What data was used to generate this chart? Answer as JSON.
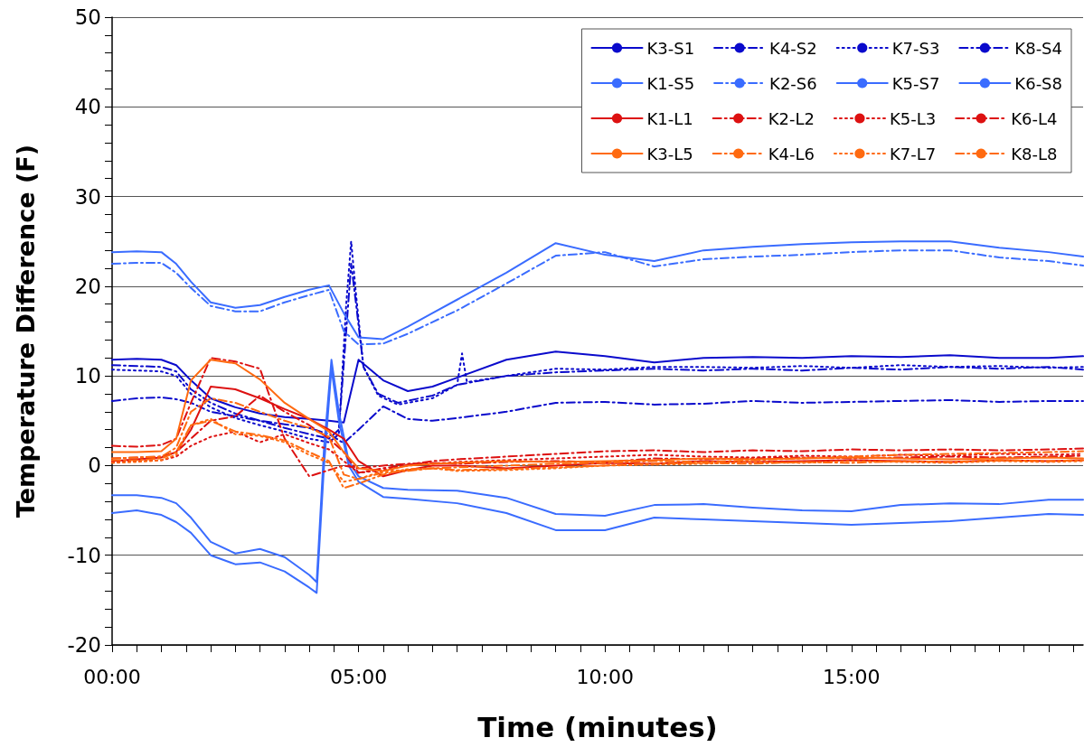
{
  "chart_data": {
    "type": "line",
    "xlabel": "Time (minutes)",
    "ylabel": "Temperature Difference (F)",
    "xlim": [
      0,
      19.7
    ],
    "ylim": [
      -20,
      50
    ],
    "xticks": [
      {
        "value": 0,
        "label": "00:00"
      },
      {
        "value": 0.5,
        "label": null
      },
      {
        "value": 1,
        "label": null
      },
      {
        "value": 1.5,
        "label": null
      },
      {
        "value": 2,
        "label": null
      },
      {
        "value": 2.5,
        "label": null
      },
      {
        "value": 3,
        "label": null
      },
      {
        "value": 3.5,
        "label": null
      },
      {
        "value": 4,
        "label": null
      },
      {
        "value": 4.5,
        "label": null
      },
      {
        "value": 5,
        "label": "05:00"
      },
      {
        "value": 5.5,
        "label": null
      },
      {
        "value": 6,
        "label": null
      },
      {
        "value": 6.5,
        "label": null
      },
      {
        "value": 7,
        "label": null
      },
      {
        "value": 7.5,
        "label": null
      },
      {
        "value": 8,
        "label": null
      },
      {
        "value": 8.5,
        "label": null
      },
      {
        "value": 9,
        "label": null
      },
      {
        "value": 9.5,
        "label": null
      },
      {
        "value": 10,
        "label": "10:00"
      },
      {
        "value": 10.5,
        "label": null
      },
      {
        "value": 11,
        "label": null
      },
      {
        "value": 11.5,
        "label": null
      },
      {
        "value": 12,
        "label": null
      },
      {
        "value": 12.5,
        "label": null
      },
      {
        "value": 13,
        "label": null
      },
      {
        "value": 13.5,
        "label": null
      },
      {
        "value": 14,
        "label": null
      },
      {
        "value": 14.5,
        "label": null
      },
      {
        "value": 15,
        "label": "15:00"
      },
      {
        "value": 15.5,
        "label": null
      },
      {
        "value": 16,
        "label": null
      },
      {
        "value": 16.5,
        "label": null
      },
      {
        "value": 17,
        "label": null
      },
      {
        "value": 17.5,
        "label": null
      },
      {
        "value": 18,
        "label": null
      },
      {
        "value": 18.5,
        "label": null
      },
      {
        "value": 19,
        "label": null
      },
      {
        "value": 19.5,
        "label": null
      }
    ],
    "yticks": [
      -20,
      {
        "value": -18,
        "label": null
      },
      {
        "value": -16,
        "label": null
      },
      {
        "value": -14,
        "label": null
      },
      {
        "value": -12,
        "label": null
      },
      -10,
      {
        "value": -8,
        "label": null
      },
      {
        "value": -6,
        "label": null
      },
      {
        "value": -4,
        "label": null
      },
      {
        "value": -2,
        "label": null
      },
      0,
      {
        "value": 2,
        "label": null
      },
      {
        "value": 4,
        "label": null
      },
      {
        "value": 6,
        "label": null
      },
      {
        "value": 8,
        "label": null
      },
      10,
      {
        "value": 12,
        "label": null
      },
      {
        "value": 14,
        "label": null
      },
      {
        "value": 16,
        "label": null
      },
      {
        "value": 18,
        "label": null
      },
      20,
      {
        "value": 22,
        "label": null
      },
      {
        "value": 24,
        "label": null
      },
      {
        "value": 26,
        "label": null
      },
      {
        "value": 28,
        "label": null
      },
      30,
      {
        "value": 32,
        "label": null
      },
      {
        "value": 34,
        "label": null
      },
      {
        "value": 36,
        "label": null
      },
      {
        "value": 38,
        "label": null
      },
      40,
      {
        "value": 42,
        "label": null
      },
      {
        "value": 44,
        "label": null
      },
      {
        "value": 46,
        "label": null
      },
      {
        "value": 48,
        "label": null
      },
      50
    ],
    "grid": "y",
    "legend": "top right",
    "marker": "none",
    "x": [
      0,
      0.5,
      1,
      1.3,
      1.6,
      2,
      2.5,
      3,
      3.5,
      4,
      4.4,
      4.7,
      5,
      5.5,
      6,
      6.5,
      7,
      8,
      9,
      10,
      11,
      12,
      13,
      14,
      15,
      16,
      17,
      18,
      19,
      19.7
    ],
    "series": [
      {
        "name": "K3-S1",
        "color": "#0a0acc",
        "line_style": "solid",
        "values": [
          11.8,
          11.9,
          11.8,
          11.2,
          9.5,
          7.5,
          6.5,
          5.8,
          5.4,
          5.2,
          5,
          4.8,
          11.8,
          9.5,
          8.3,
          8.8,
          9.8,
          11.8,
          12.7,
          12.2,
          11.5,
          12,
          12.1,
          12,
          12.2,
          12.1,
          12.3,
          12,
          12,
          12.2
        ]
      },
      {
        "name": "K4-S2",
        "color": "#0a0acc",
        "line_style": "dashed",
        "x": [
          0,
          0.5,
          1,
          1.3,
          1.6,
          2,
          2.5,
          3,
          3.5,
          4,
          4.4,
          4.6,
          4.75,
          4.85,
          4.95,
          5.1,
          5.4,
          5.8,
          6.5,
          7,
          8,
          9,
          10,
          11,
          12,
          13,
          14,
          15,
          16,
          17,
          18,
          19,
          19.7
        ],
        "values": [
          11.2,
          11.1,
          11,
          10.5,
          8.5,
          7,
          5.8,
          5,
          4.2,
          3.5,
          3,
          4,
          15,
          22.5,
          18,
          11,
          8,
          7,
          7.8,
          9,
          10,
          10.4,
          10.6,
          10.8,
          10.6,
          10.8,
          10.6,
          10.9,
          10.7,
          11,
          10.8,
          11,
          10.7
        ]
      },
      {
        "name": "K7-S3",
        "color": "#0a0acc",
        "line_style": "dotted",
        "x": [
          0,
          0.5,
          1,
          1.3,
          1.6,
          2,
          2.5,
          3,
          3.5,
          4,
          4.4,
          4.6,
          4.75,
          4.85,
          4.95,
          5.1,
          5.4,
          5.8,
          6.5,
          7,
          7.1,
          7.2,
          8,
          9,
          10,
          11,
          12,
          13,
          14,
          15,
          16,
          17,
          18,
          19,
          19.7
        ],
        "values": [
          10.7,
          10.6,
          10.5,
          10,
          8,
          6.5,
          5.3,
          4.5,
          3.8,
          3,
          2.6,
          3.5,
          18,
          25,
          19,
          11,
          7.8,
          6.8,
          7.5,
          9,
          12.5,
          9.3,
          10,
          10.8,
          10.7,
          11,
          11,
          10.9,
          11.1,
          10.9,
          11.2,
          11,
          11.1,
          10.9,
          11
        ]
      },
      {
        "name": "K8-S4",
        "color": "#0a0acc",
        "line_style": "dashed",
        "values": [
          7.2,
          7.5,
          7.6,
          7.4,
          7,
          6,
          5.5,
          5,
          4.6,
          4.2,
          3.5,
          2.5,
          4,
          6.6,
          5.2,
          5,
          5.3,
          6,
          7,
          7.1,
          6.8,
          6.9,
          7.2,
          7,
          7.1,
          7.2,
          7.3,
          7.1,
          7.2,
          7.2
        ]
      },
      {
        "name": "K1-S5",
        "color": "#3a6cff",
        "line_style": "solid",
        "values": [
          23.8,
          23.9,
          23.8,
          22.5,
          20.5,
          18.2,
          17.6,
          17.9,
          18.8,
          19.6,
          20.1,
          17,
          14.3,
          14.1,
          15.5,
          17,
          18.5,
          21.5,
          24.8,
          23.5,
          22.8,
          24,
          24.4,
          24.7,
          24.9,
          25,
          25,
          24.3,
          23.8,
          23.3
        ]
      },
      {
        "name": "K2-S6",
        "color": "#3a6cff",
        "line_style": "dashed",
        "values": [
          22.5,
          22.6,
          22.6,
          21.5,
          19.8,
          17.8,
          17.2,
          17.2,
          18.2,
          19,
          19.6,
          15,
          13.5,
          13.6,
          14.7,
          16,
          17.3,
          20.3,
          23.4,
          23.8,
          22.2,
          23,
          23.3,
          23.5,
          23.8,
          24,
          24,
          23.2,
          22.8,
          22.3
        ]
      },
      {
        "name": "K5-S7",
        "color": "#3a6cff",
        "line_style": "solid",
        "x": [
          0,
          0.5,
          1,
          1.3,
          1.6,
          2,
          2.5,
          3,
          3.5,
          4,
          4.15,
          4.3,
          4.45,
          4.6,
          4.8,
          5,
          5.5,
          6,
          7,
          8,
          9,
          10,
          11,
          12,
          13,
          14,
          15,
          16,
          17,
          18,
          19,
          19.7
        ],
        "values": [
          -3.3,
          -3.3,
          -3.6,
          -4.2,
          -5.8,
          -8.5,
          -9.8,
          -9.3,
          -10.2,
          -12.2,
          -13,
          2,
          11.8,
          6,
          0.5,
          -1.2,
          -2.5,
          -2.7,
          -2.8,
          -3.6,
          -5.4,
          -5.6,
          -4.4,
          -4.3,
          -4.7,
          -5,
          -5.1,
          -4.4,
          -4.2,
          -4.3,
          -3.8,
          -3.8
        ]
      },
      {
        "name": "K6-S8",
        "color": "#3a6cff",
        "line_style": "solid",
        "x": [
          0,
          0.5,
          1,
          1.3,
          1.6,
          2,
          2.5,
          3,
          3.5,
          4,
          4.15,
          4.3,
          4.45,
          4.6,
          4.8,
          5,
          5.5,
          6,
          7,
          8,
          9,
          10,
          11,
          12,
          13,
          14,
          15,
          16,
          17,
          18,
          19,
          19.7
        ],
        "values": [
          -5.3,
          -5,
          -5.5,
          -6.3,
          -7.5,
          -10,
          -11,
          -10.8,
          -11.8,
          -13.6,
          -14.2,
          0,
          10.8,
          5,
          0,
          -1.8,
          -3.5,
          -3.7,
          -4.2,
          -5.3,
          -7.2,
          -7.2,
          -5.8,
          -6,
          -6.2,
          -6.4,
          -6.6,
          -6.4,
          -6.2,
          -5.8,
          -5.4,
          -5.5
        ]
      },
      {
        "name": "K1-L1",
        "color": "#dd1111",
        "line_style": "solid",
        "values": [
          0.5,
          0.7,
          0.9,
          1.5,
          4,
          8.8,
          8.5,
          7.5,
          6.3,
          5.2,
          4,
          3,
          0.5,
          -1.2,
          -0.5,
          0,
          0,
          -0.3,
          0,
          0.3,
          0.2,
          0.5,
          0.4,
          0.5,
          0.6,
          0.5,
          0.4,
          0.6,
          0.5,
          0.6
        ]
      },
      {
        "name": "K2-L2",
        "color": "#dd1111",
        "line_style": "dashed",
        "values": [
          2.2,
          2.1,
          2.3,
          3,
          7,
          12,
          11.6,
          10.8,
          3,
          -1.2,
          -0.5,
          0,
          -0.3,
          0,
          0.2,
          0.3,
          0.2,
          0.4,
          0.5,
          0.4,
          0.8,
          0.7,
          0.8,
          0.9,
          0.8,
          0.9,
          1,
          0.9,
          1,
          1.1
        ]
      },
      {
        "name": "K5-L3",
        "color": "#dd1111",
        "line_style": "dotted",
        "values": [
          0.4,
          0.5,
          0.6,
          1,
          2.2,
          3.2,
          3.8,
          2.6,
          3.5,
          2.5,
          1.8,
          0.5,
          -0.8,
          -0.5,
          0,
          0.2,
          0.4,
          0.6,
          0.8,
          1,
          1.2,
          1,
          0.9,
          1.1,
          1,
          1.2,
          1.1,
          1.3,
          1.2,
          1.3
        ]
      },
      {
        "name": "K6-L4",
        "color": "#dd1111",
        "line_style": "dashed",
        "values": [
          0.8,
          0.9,
          1,
          1.5,
          3,
          5,
          5.5,
          7.8,
          6,
          4.5,
          3,
          1.5,
          -0.8,
          -0.3,
          0.1,
          0.5,
          0.7,
          1,
          1.3,
          1.6,
          1.7,
          1.5,
          1.7,
          1.6,
          1.8,
          1.7,
          1.8,
          1.7,
          1.8,
          1.9
        ]
      },
      {
        "name": "K3-L5",
        "color": "#ff6a10",
        "line_style": "solid",
        "values": [
          1.5,
          1.5,
          1.6,
          3,
          9.5,
          11.8,
          11.4,
          9.6,
          7,
          5.2,
          3.8,
          1.5,
          -0.3,
          -0.6,
          0,
          0.2,
          0.3,
          0.5,
          0.4,
          0.5,
          0.6,
          0.8,
          0.7,
          0.8,
          0.9,
          0.8,
          0.7,
          0.8,
          0.9,
          0.8
        ]
      },
      {
        "name": "K4-L6",
        "color": "#ff6a10",
        "line_style": "dashed",
        "values": [
          0.6,
          0.6,
          0.8,
          1.5,
          4.5,
          5,
          3.8,
          3.4,
          2.8,
          1.5,
          0.5,
          -2.5,
          -2,
          -1,
          -0.4,
          -0.3,
          -0.5,
          -0.4,
          -0.2,
          0,
          0.2,
          0.3,
          0.2,
          0.4,
          0.3,
          0.5,
          0.4,
          0.6,
          0.5,
          0.6
        ]
      },
      {
        "name": "K7-L7",
        "color": "#ff6a10",
        "line_style": "dotted",
        "values": [
          0.3,
          0.4,
          0.6,
          1.2,
          4.5,
          5.2,
          3.5,
          3.3,
          2.6,
          1.2,
          0.3,
          -1.8,
          -1.5,
          -0.6,
          -0.5,
          -0.3,
          -0.6,
          -0.5,
          -0.3,
          0,
          0.1,
          0.2,
          0.4,
          0.3,
          0.5,
          0.4,
          0.3,
          0.5,
          0.4,
          0.5
        ]
      },
      {
        "name": "K8-L8",
        "color": "#ff6a10",
        "line_style": "dashed",
        "values": [
          0.8,
          0.9,
          1,
          2,
          6,
          7.5,
          7,
          6,
          5,
          4.2,
          3.2,
          -1,
          -1.5,
          -0.8,
          -0.6,
          -0.3,
          -0.2,
          0,
          0.2,
          0.3,
          0.5,
          0.4,
          0.6,
          0.8,
          1,
          1.2,
          1.3,
          1.4,
          1.5,
          1.6
        ]
      }
    ]
  }
}
